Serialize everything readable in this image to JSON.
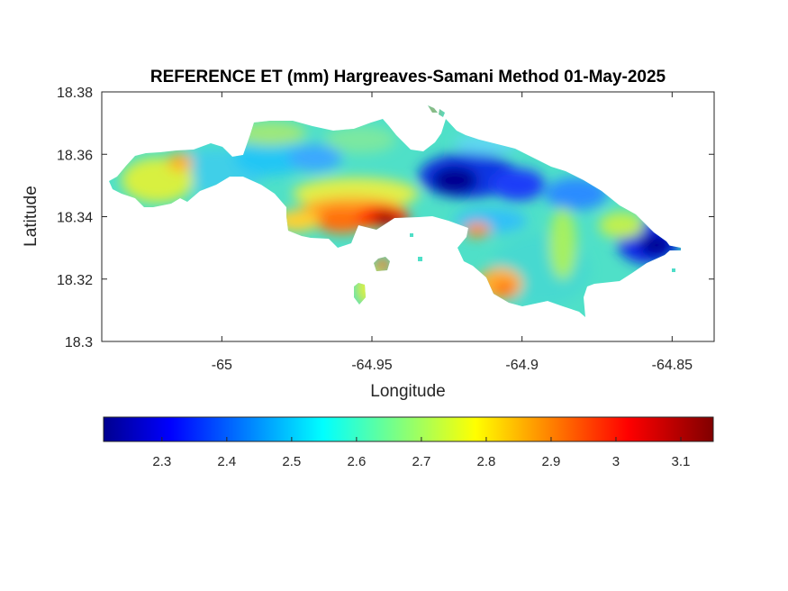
{
  "chart_data": {
    "type": "heatmap",
    "title": "REFERENCE ET (mm) Hargreaves-Samani Method  01-May-2025",
    "xlabel": "Longitude",
    "ylabel": "Latitude",
    "xlim": [
      -65.04,
      -64.836
    ],
    "ylim": [
      18.3,
      18.38
    ],
    "xticks": [
      -65,
      -64.95,
      -64.9,
      -64.85
    ],
    "xtick_labels": [
      "-65",
      "-64.95",
      "-64.9",
      "-64.85"
    ],
    "yticks": [
      18.3,
      18.32,
      18.34,
      18.36,
      18.38
    ],
    "ytick_labels": [
      "18.3",
      "18.32",
      "18.34",
      "18.36",
      "18.38"
    ],
    "colormap": "jet",
    "colorbar": {
      "orientation": "horizontal",
      "placement": "below",
      "limits": [
        2.21,
        3.15
      ],
      "ticks": [
        2.3,
        2.4,
        2.5,
        2.6,
        2.7,
        2.8,
        2.9,
        3.0,
        3.1
      ],
      "tick_labels": [
        "2.3",
        "2.4",
        "2.5",
        "2.6",
        "2.7",
        "2.8",
        "2.9",
        "3",
        "3.1"
      ]
    },
    "grid": false,
    "notable_values": [
      {
        "lon": -64.95,
        "lat": 18.338,
        "value": 3.1
      },
      {
        "lon": -64.963,
        "lat": 18.336,
        "value": 2.95
      },
      {
        "lon": -64.92,
        "lat": 18.35,
        "value": 2.3
      },
      {
        "lon": -64.855,
        "lat": 18.33,
        "value": 2.22
      },
      {
        "lon": -65.025,
        "lat": 18.357,
        "value": 2.75
      },
      {
        "lon": -64.98,
        "lat": 18.357,
        "value": 2.55
      }
    ]
  }
}
